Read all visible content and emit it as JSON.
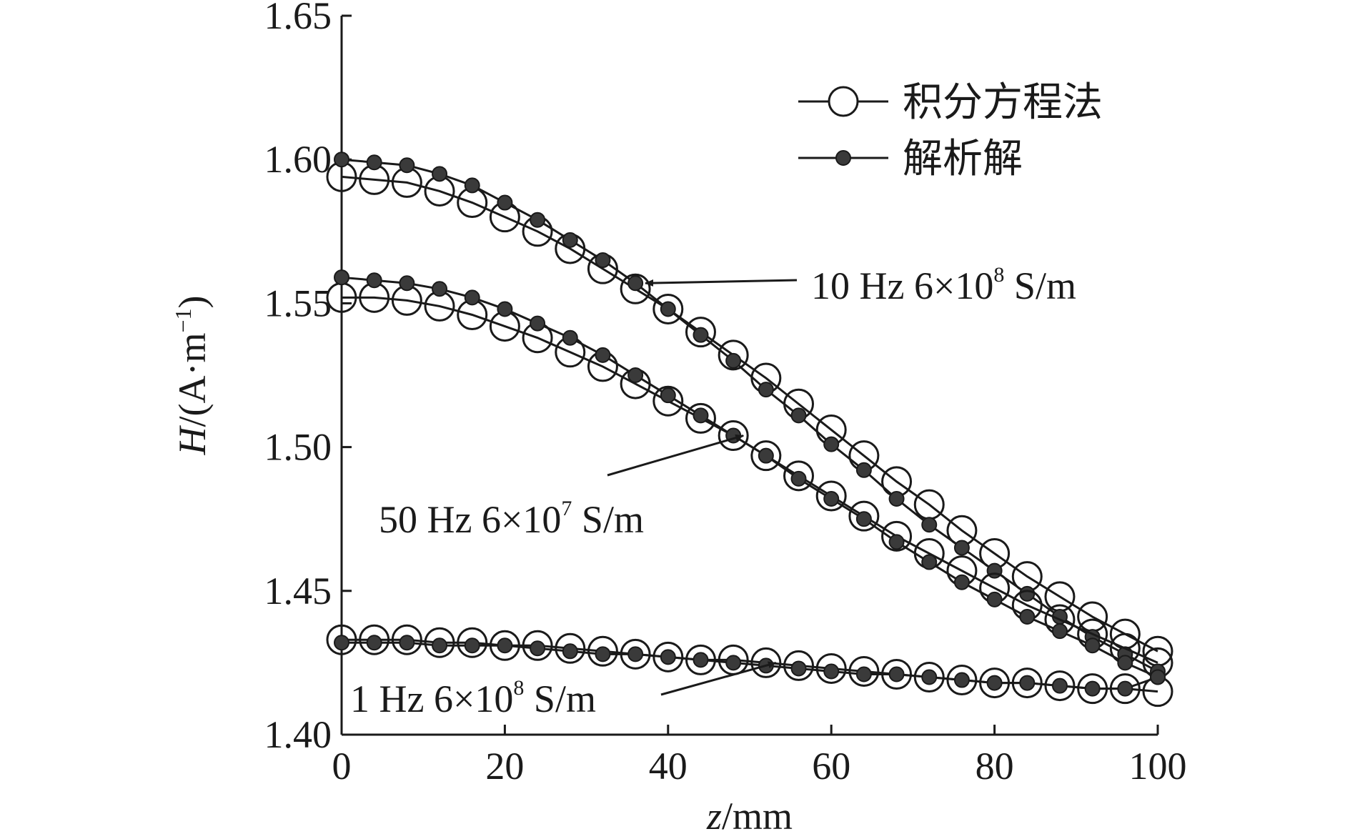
{
  "chart_data": {
    "type": "line",
    "xlabel": "z/mm",
    "xlabel_italic": "z",
    "xlabel_rest": "/mm",
    "ylabel_italic": "H",
    "ylabel_rest": "/(A·m",
    "ylabel_sup": "−1",
    "ylabel_close": ")",
    "xlim": [
      0,
      100
    ],
    "ylim": [
      1.4,
      1.65
    ],
    "xticks": [
      "0",
      "20",
      "40",
      "60",
      "80",
      "100"
    ],
    "yticks": [
      "1.40",
      "1.45",
      "1.50",
      "1.55",
      "1.60",
      "1.65"
    ],
    "grid": false,
    "legend_position": "top-right",
    "legend": [
      {
        "label": "积分方程法",
        "marker": "open-circle"
      },
      {
        "label": "解析解",
        "marker": "filled-circle"
      }
    ],
    "x": [
      0,
      4,
      8,
      12,
      16,
      20,
      24,
      28,
      32,
      36,
      40,
      44,
      48,
      52,
      56,
      60,
      64,
      68,
      72,
      76,
      80,
      84,
      88,
      92,
      96,
      100
    ],
    "series": [
      {
        "group": "10 Hz",
        "method": "积分方程法",
        "values": [
          1.594,
          1.593,
          1.592,
          1.589,
          1.585,
          1.58,
          1.575,
          1.569,
          1.562,
          1.555,
          1.548,
          1.54,
          1.532,
          1.524,
          1.515,
          1.506,
          1.497,
          1.488,
          1.48,
          1.471,
          1.463,
          1.455,
          1.448,
          1.441,
          1.435,
          1.429
        ]
      },
      {
        "group": "10 Hz",
        "method": "解析解",
        "values": [
          1.6,
          1.599,
          1.598,
          1.595,
          1.591,
          1.585,
          1.579,
          1.572,
          1.565,
          1.557,
          1.548,
          1.539,
          1.53,
          1.52,
          1.511,
          1.501,
          1.492,
          1.482,
          1.473,
          1.465,
          1.457,
          1.449,
          1.441,
          1.434,
          1.428,
          1.422
        ]
      },
      {
        "group": "50 Hz",
        "method": "积分方程法",
        "values": [
          1.552,
          1.552,
          1.551,
          1.549,
          1.546,
          1.542,
          1.538,
          1.533,
          1.528,
          1.522,
          1.516,
          1.51,
          1.504,
          1.497,
          1.49,
          1.483,
          1.476,
          1.469,
          1.463,
          1.457,
          1.451,
          1.445,
          1.44,
          1.435,
          1.43,
          1.425
        ]
      },
      {
        "group": "50 Hz",
        "method": "解析解",
        "values": [
          1.559,
          1.558,
          1.557,
          1.555,
          1.552,
          1.548,
          1.543,
          1.538,
          1.532,
          1.525,
          1.518,
          1.511,
          1.504,
          1.497,
          1.489,
          1.482,
          1.475,
          1.467,
          1.46,
          1.453,
          1.447,
          1.441,
          1.436,
          1.431,
          1.425,
          1.42
        ]
      },
      {
        "group": "1 Hz",
        "method": "积分方程法",
        "values": [
          1.433,
          1.433,
          1.433,
          1.432,
          1.432,
          1.431,
          1.431,
          1.43,
          1.429,
          1.428,
          1.427,
          1.426,
          1.426,
          1.425,
          1.424,
          1.423,
          1.422,
          1.421,
          1.42,
          1.419,
          1.418,
          1.418,
          1.417,
          1.416,
          1.416,
          1.415
        ]
      },
      {
        "group": "1 Hz",
        "method": "解析解",
        "values": [
          1.432,
          1.432,
          1.432,
          1.431,
          1.431,
          1.431,
          1.43,
          1.429,
          1.428,
          1.428,
          1.427,
          1.426,
          1.425,
          1.424,
          1.423,
          1.422,
          1.421,
          1.421,
          1.42,
          1.419,
          1.418,
          1.418,
          1.417,
          1.416,
          1.416,
          1.42
        ]
      }
    ],
    "annotations": [
      {
        "main": "10 Hz 6×10",
        "sup": "8",
        "tail": "S/m",
        "arrow_to": {
          "x": 36,
          "y": 1.557
        }
      },
      {
        "main": "50 Hz 6×10",
        "sup": "7",
        "tail": "S/m",
        "arrow_to": {
          "x": 48,
          "y": 1.504
        }
      },
      {
        "main": "1 Hz 6×10",
        "sup": "8",
        "tail": "S/m",
        "arrow_to": {
          "x": 52,
          "y": 1.425
        }
      }
    ]
  }
}
